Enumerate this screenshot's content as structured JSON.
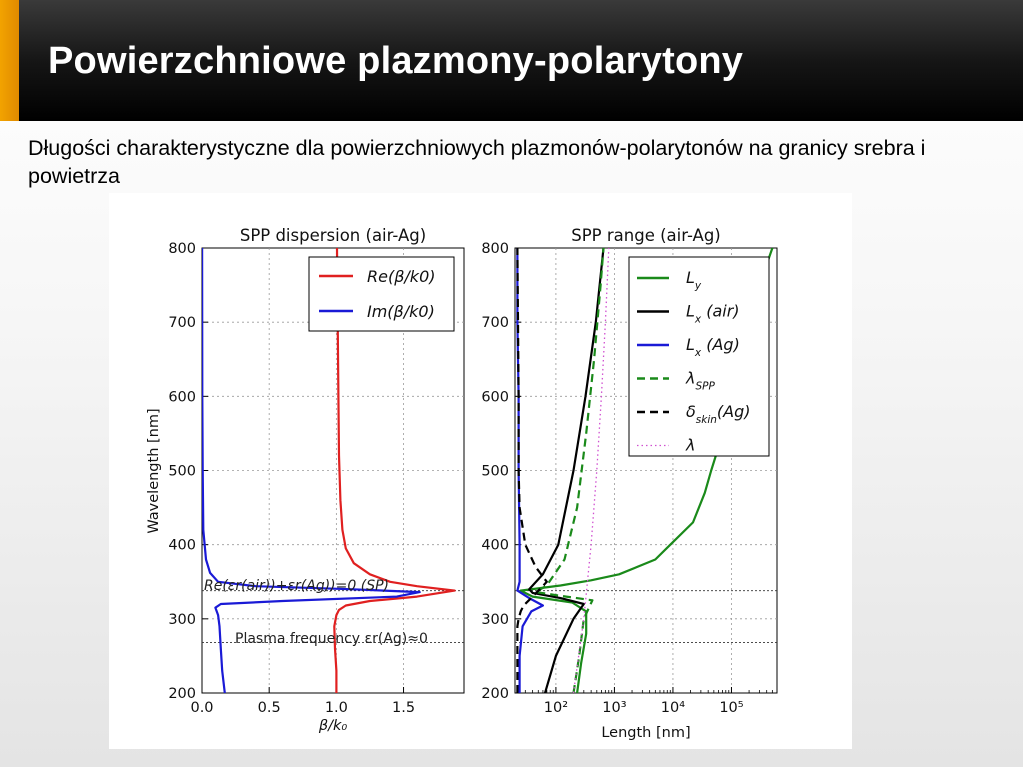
{
  "slide": {
    "title": "Powierzchniowe plazmony-polarytony",
    "subtitle": "Długości charakterystyczne dla powierzchniowych plazmonów-polarytonów na granicy srebra i powietrza"
  },
  "colors": {
    "red": "#e02020",
    "blue": "#1a1ad6",
    "green": "#1a8a1a",
    "black": "#000000",
    "magenta": "#d050d0",
    "gridline": "#9a9a9a"
  },
  "chart_data": [
    {
      "type": "line",
      "title": "SPP dispersion (air-Ag)",
      "xlabel": "β/k₀",
      "ylabel": "Wavelength [nm]",
      "xlim": [
        0.0,
        1.95
      ],
      "ylim": [
        200,
        800
      ],
      "xticks": [
        "0.0",
        "0.5",
        "1.0",
        "1.5"
      ],
      "yticks": [
        "200",
        "300",
        "400",
        "500",
        "600",
        "700",
        "800"
      ],
      "grid": true,
      "legend_position": "top-right",
      "hlines": [
        338,
        268
      ],
      "annotations": [
        {
          "text": "Re(εr(air))+εr(Ag))=0 (SP)",
          "x": 0.01,
          "y": 338
        },
        {
          "text": "Plasma frequency εr(Ag)≈0",
          "x": 0.27,
          "y": 275
        }
      ],
      "series": [
        {
          "name": "Re(β/k0)",
          "color": "#e02020",
          "points": [
            [
              1.0,
              200
            ],
            [
              1.0,
              230
            ],
            [
              0.99,
              260
            ],
            [
              0.985,
              290
            ],
            [
              1.0,
              305
            ],
            [
              1.02,
              312
            ],
            [
              1.07,
              318
            ],
            [
              1.25,
              324
            ],
            [
              1.6,
              330
            ],
            [
              1.88,
              338
            ],
            [
              1.6,
              344
            ],
            [
              1.4,
              350
            ],
            [
              1.25,
              360
            ],
            [
              1.13,
              375
            ],
            [
              1.07,
              395
            ],
            [
              1.045,
              420
            ],
            [
              1.03,
              460
            ],
            [
              1.02,
              520
            ],
            [
              1.015,
              600
            ],
            [
              1.01,
              700
            ],
            [
              1.005,
              800
            ]
          ]
        },
        {
          "name": "Im(β/k0)",
          "color": "#1a1ad6",
          "points": [
            [
              0.17,
              200
            ],
            [
              0.15,
              230
            ],
            [
              0.14,
              260
            ],
            [
              0.13,
              290
            ],
            [
              0.12,
              305
            ],
            [
              0.1,
              315
            ],
            [
              0.14,
              320
            ],
            [
              0.6,
              324
            ],
            [
              1.45,
              330
            ],
            [
              1.62,
              336
            ],
            [
              1.1,
              340
            ],
            [
              0.4,
              344
            ],
            [
              0.12,
              350
            ],
            [
              0.06,
              362
            ],
            [
              0.03,
              380
            ],
            [
              0.01,
              420
            ],
            [
              0.005,
              500
            ],
            [
              0.002,
              600
            ],
            [
              0.001,
              800
            ]
          ]
        }
      ]
    },
    {
      "type": "line",
      "title": "SPP range (air-Ag)",
      "xlabel": "Length [nm]",
      "ylabel": "",
      "xscale": "log",
      "xlim": [
        20,
        600000
      ],
      "ylim": [
        200,
        800
      ],
      "xticks": [
        "10^2",
        "10^3",
        "10^4",
        "10^5"
      ],
      "yticks": [
        "200",
        "300",
        "400",
        "500",
        "600",
        "700",
        "800"
      ],
      "grid": true,
      "legend_position": "top-right",
      "hlines": [
        338,
        268
      ],
      "series": [
        {
          "name": "L_y",
          "label_main": "L",
          "label_sub": "y",
          "label_rest": "",
          "color": "#1a8a1a",
          "dash": "solid",
          "points": [
            [
              230,
              200
            ],
            [
              270,
              240
            ],
            [
              330,
              280
            ],
            [
              330,
              310
            ],
            [
              190,
              322
            ],
            [
              40,
              330
            ],
            [
              25,
              338
            ],
            [
              120,
              345
            ],
            [
              400,
              352
            ],
            [
              1200,
              360
            ],
            [
              5000,
              380
            ],
            [
              9000,
              400
            ],
            [
              22000,
              430
            ],
            [
              35000,
              470
            ],
            [
              45000,
              500
            ],
            [
              65000,
              540
            ],
            [
              90000,
              600
            ],
            [
              150000,
              680
            ],
            [
              300000,
              750
            ],
            [
              500000,
              800
            ]
          ]
        },
        {
          "name": "L_x (air)",
          "label_main": "L",
          "label_sub": "x",
          "label_rest": " (air)",
          "color": "#000000",
          "dash": "solid",
          "points": [
            [
              65,
              200
            ],
            [
              100,
              250
            ],
            [
              200,
              300
            ],
            [
              300,
              320
            ],
            [
              120,
              328
            ],
            [
              40,
              335
            ],
            [
              35,
              340
            ],
            [
              60,
              360
            ],
            [
              110,
              400
            ],
            [
              200,
              500
            ],
            [
              320,
              600
            ],
            [
              480,
              700
            ],
            [
              650,
              800
            ]
          ]
        },
        {
          "name": "L_x (Ag)",
          "label_main": "L",
          "label_sub": "x",
          "label_rest": " (Ag)",
          "color": "#1a1ad6",
          "dash": "solid",
          "points": [
            [
              24,
              200
            ],
            [
              24,
              250
            ],
            [
              27,
              290
            ],
            [
              38,
              310
            ],
            [
              60,
              318
            ],
            [
              35,
              328
            ],
            [
              22,
              338
            ],
            [
              24,
              350
            ],
            [
              24,
              400
            ],
            [
              23,
              500
            ],
            [
              23,
              600
            ],
            [
              22,
              700
            ],
            [
              22,
              800
            ]
          ]
        },
        {
          "name": "λ_SPP",
          "label_main": "λ",
          "label_sub": "SPP",
          "label_rest": "",
          "color": "#1a8a1a",
          "dash": "dashed",
          "points": [
            [
              200,
              200
            ],
            [
              250,
              250
            ],
            [
              300,
              300
            ],
            [
              420,
              325
            ],
            [
              150,
              330
            ],
            [
              45,
              336
            ],
            [
              70,
              345
            ],
            [
              140,
              380
            ],
            [
              230,
              450
            ],
            [
              330,
              550
            ],
            [
              450,
              650
            ],
            [
              580,
              750
            ],
            [
              650,
              800
            ]
          ]
        },
        {
          "name": "δ_skin(Ag)",
          "label_main": "δ",
          "label_sub": "skin",
          "label_rest": "(Ag)",
          "color": "#000000",
          "dash": "dashed",
          "points": [
            [
              22,
              200
            ],
            [
              22,
              250
            ],
            [
              22,
              290
            ],
            [
              23,
              300
            ],
            [
              25,
              310
            ],
            [
              28,
              318
            ],
            [
              40,
              330
            ],
            [
              70,
              350
            ],
            [
              45,
              370
            ],
            [
              30,
              400
            ],
            [
              24,
              450
            ],
            [
              23,
              500
            ],
            [
              23,
              600
            ],
            [
              22,
              800
            ]
          ]
        },
        {
          "name": "λ",
          "label_main": "λ",
          "label_sub": "",
          "label_rest": "",
          "color": "#d050d0",
          "dash": "dotted",
          "points": [
            [
              200,
              200
            ],
            [
              300,
              300
            ],
            [
              400,
              400
            ],
            [
              500,
              500
            ],
            [
              600,
              600
            ],
            [
              700,
              700
            ],
            [
              800,
              800
            ]
          ]
        }
      ]
    }
  ]
}
